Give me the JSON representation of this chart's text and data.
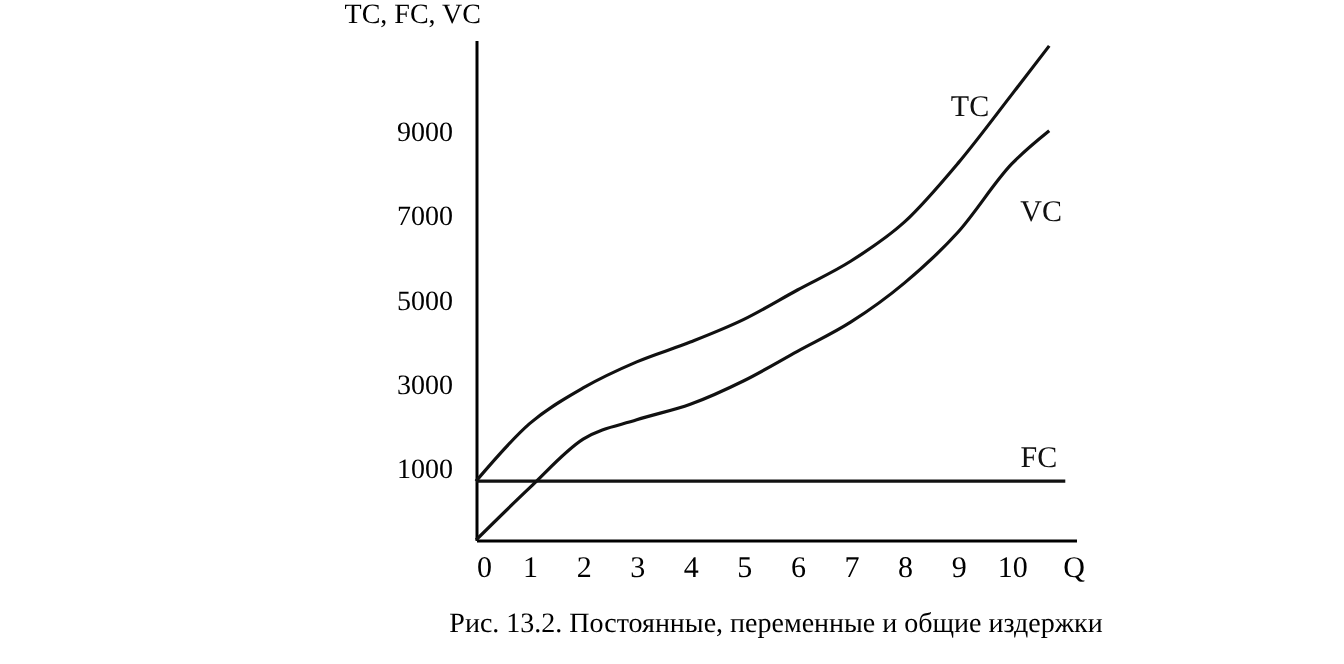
{
  "chart_data": {
    "type": "line",
    "title": "Рис. 13.2. Постоянные, переменные и общие издержки",
    "xlabel": "Q",
    "ylabel": "TC, FC, VC",
    "xlim": [
      0,
      11.2
    ],
    "xticks": [
      0,
      1,
      2,
      3,
      4,
      5,
      6,
      7,
      8,
      9,
      10
    ],
    "ylim": [
      -700,
      11200
    ],
    "yticks": [
      1000,
      3000,
      5000,
      7000,
      9000
    ],
    "grid": false,
    "legend": false,
    "marker": "none",
    "line_style": "solid",
    "series": [
      {
        "name": "TC",
        "color": "#111111",
        "x": [
          0,
          1,
          2,
          3,
          4,
          5,
          6,
          7,
          8,
          9,
          10,
          10.7
        ],
        "values": [
          700,
          2070,
          2920,
          3540,
          4010,
          4550,
          5250,
          5940,
          6870,
          8270,
          9900,
          11060
        ]
      },
      {
        "name": "VC",
        "color": "#111111",
        "x": [
          0,
          1,
          2,
          3,
          4,
          5,
          6,
          7,
          8,
          9,
          10,
          10.7
        ],
        "values": [
          -700,
          540,
          1700,
          2160,
          2530,
          3090,
          3790,
          4490,
          5420,
          6630,
          8250,
          9040
        ]
      },
      {
        "name": "FC",
        "color": "#111111",
        "x": [
          0,
          11
        ],
        "values": [
          700,
          700
        ]
      }
    ]
  }
}
